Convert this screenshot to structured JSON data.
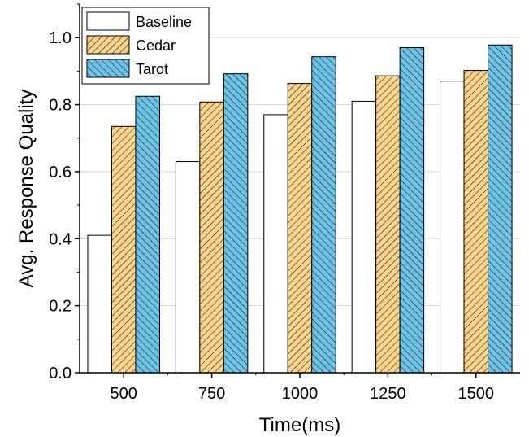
{
  "chart_data": {
    "type": "bar",
    "xlabel": "Time(ms)",
    "ylabel": "Avg. Response Quality",
    "categories": [
      "500",
      "750",
      "1000",
      "1250",
      "1500"
    ],
    "ylim": [
      0,
      1.1
    ],
    "yticks": [
      "0.0",
      "0.2",
      "0.4",
      "0.6",
      "0.8",
      "1.0"
    ],
    "grid": "horizontal",
    "legend_position": "top-left",
    "series": [
      {
        "name": "Baseline",
        "values": [
          0.41,
          0.63,
          0.77,
          0.81,
          0.87
        ],
        "color": "#ffffff",
        "pattern": "none"
      },
      {
        "name": "Cedar",
        "values": [
          0.735,
          0.808,
          0.863,
          0.886,
          0.902
        ],
        "color": "#fad38c",
        "pattern": "hatch-right"
      },
      {
        "name": "Tarot",
        "values": [
          0.825,
          0.892,
          0.943,
          0.97,
          0.978
        ],
        "color": "#6ec3e7",
        "pattern": "hatch-left"
      }
    ]
  }
}
